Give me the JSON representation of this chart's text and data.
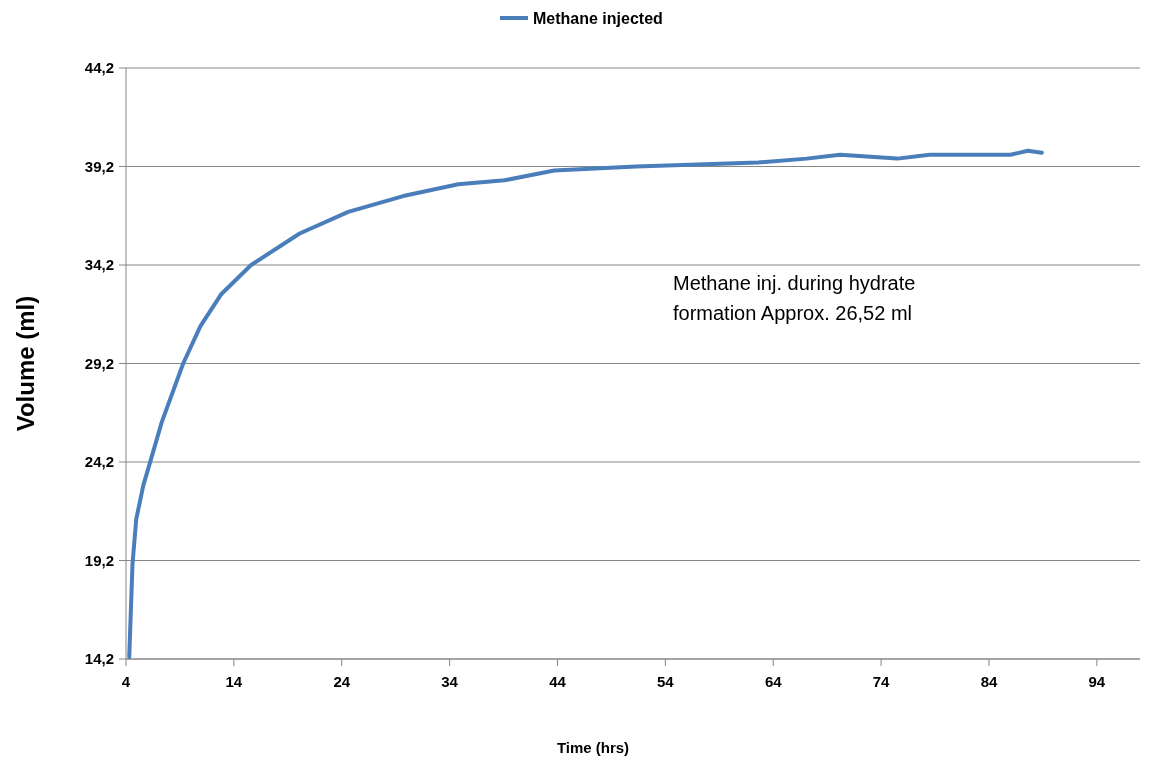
{
  "chart_data": {
    "type": "line",
    "xlabel": "Time (hrs)",
    "ylabel": "Volume (ml)",
    "legend": "top",
    "grid": "y",
    "annotations": [
      "Methane inj. during hydrate formation Approx. 26,52 ml"
    ],
    "xlim": [
      4,
      98
    ],
    "xticks": [
      4,
      14,
      24,
      34,
      44,
      54,
      64,
      74,
      84,
      94
    ],
    "ylim": [
      14.2,
      44.2
    ],
    "yticks": [
      {
        "value": 14.2,
        "label": "14,2"
      },
      {
        "value": 19.2,
        "label": "19,2"
      },
      {
        "value": 24.2,
        "label": "24,2"
      },
      {
        "value": 29.2,
        "label": "29,2"
      },
      {
        "value": 34.2,
        "label": "34,2"
      },
      {
        "value": 39.2,
        "label": "39,2"
      },
      {
        "value": 44.2,
        "label": "44,2"
      }
    ],
    "series": [
      {
        "name": "Methane injected",
        "color": "#4a7ebb",
        "x": [
          4.3,
          4.6,
          4.95,
          5.6,
          6.4,
          7.3,
          9.3,
          10.9,
          12.8,
          15.6,
          20.1,
          24.6,
          29.7,
          34.8,
          39.1,
          43.7,
          51.3,
          62.6,
          67.1,
          70.2,
          75.5,
          78.5,
          86.0,
          87.6,
          88.9
        ],
        "values": [
          14.3,
          19.0,
          21.3,
          23.0,
          24.5,
          26.2,
          29.2,
          31.1,
          32.7,
          34.2,
          35.8,
          36.9,
          37.7,
          38.3,
          38.5,
          39.0,
          39.2,
          39.4,
          39.6,
          39.8,
          39.6,
          39.8,
          39.8,
          40.0,
          39.9
        ]
      }
    ]
  }
}
